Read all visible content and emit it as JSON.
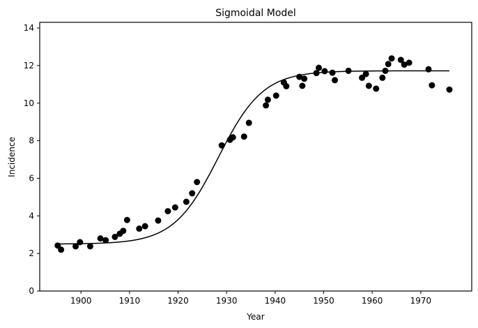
{
  "chart_data": {
    "type": "scatter",
    "title": "Sigmoidal Model",
    "xlabel": "Year",
    "ylabel": "Incidence",
    "xlim": [
      1891.5,
      1980.5
    ],
    "ylim": [
      0,
      14.3
    ],
    "xticks": [
      1900,
      1910,
      1920,
      1930,
      1940,
      1950,
      1960,
      1970
    ],
    "yticks": [
      0,
      2,
      4,
      6,
      8,
      10,
      12,
      14
    ],
    "grid": false,
    "legend": "none",
    "colors": {
      "points": "#000000",
      "curve": "#000000"
    },
    "series": [
      {
        "type": "scatter",
        "points": [
          [
            1895.2,
            2.42
          ],
          [
            1895.9,
            2.2
          ],
          [
            1898.9,
            2.38
          ],
          [
            1899.8,
            2.6
          ],
          [
            1901.9,
            2.38
          ],
          [
            1904.0,
            2.8
          ],
          [
            1905.1,
            2.7
          ],
          [
            1907.0,
            2.88
          ],
          [
            1908.0,
            3.05
          ],
          [
            1908.7,
            3.2
          ],
          [
            1909.5,
            3.78
          ],
          [
            1912.0,
            3.32
          ],
          [
            1913.2,
            3.45
          ],
          [
            1915.9,
            3.75
          ],
          [
            1917.9,
            4.25
          ],
          [
            1919.4,
            4.45
          ],
          [
            1921.7,
            4.75
          ],
          [
            1922.9,
            5.2
          ],
          [
            1923.9,
            5.8
          ],
          [
            1929.0,
            7.75
          ],
          [
            1930.7,
            8.05
          ],
          [
            1931.3,
            8.18
          ],
          [
            1933.6,
            8.22
          ],
          [
            1934.6,
            8.95
          ],
          [
            1938.1,
            9.88
          ],
          [
            1938.5,
            10.18
          ],
          [
            1940.2,
            10.4
          ],
          [
            1941.8,
            11.1
          ],
          [
            1942.3,
            10.9
          ],
          [
            1945.0,
            11.4
          ],
          [
            1945.6,
            10.92
          ],
          [
            1946.0,
            11.3
          ],
          [
            1948.5,
            11.6
          ],
          [
            1949.0,
            11.88
          ],
          [
            1950.2,
            11.7
          ],
          [
            1951.8,
            11.62
          ],
          [
            1952.3,
            11.22
          ],
          [
            1955.1,
            11.72
          ],
          [
            1957.9,
            11.35
          ],
          [
            1958.7,
            11.55
          ],
          [
            1959.3,
            10.92
          ],
          [
            1960.8,
            10.77
          ],
          [
            1962.1,
            11.35
          ],
          [
            1962.7,
            11.72
          ],
          [
            1963.3,
            12.08
          ],
          [
            1964.0,
            12.38
          ],
          [
            1965.9,
            12.3
          ],
          [
            1966.6,
            12.05
          ],
          [
            1967.6,
            12.15
          ],
          [
            1971.6,
            11.8
          ],
          [
            1972.3,
            10.95
          ],
          [
            1975.9,
            10.72
          ]
        ]
      },
      {
        "type": "line",
        "model": "logistic",
        "x_range": [
          1895.2,
          1975.9
        ],
        "params": {
          "lower": 2.5,
          "upper": 11.72,
          "midpoint": 1928.3,
          "scale": 4.6
        }
      }
    ]
  }
}
